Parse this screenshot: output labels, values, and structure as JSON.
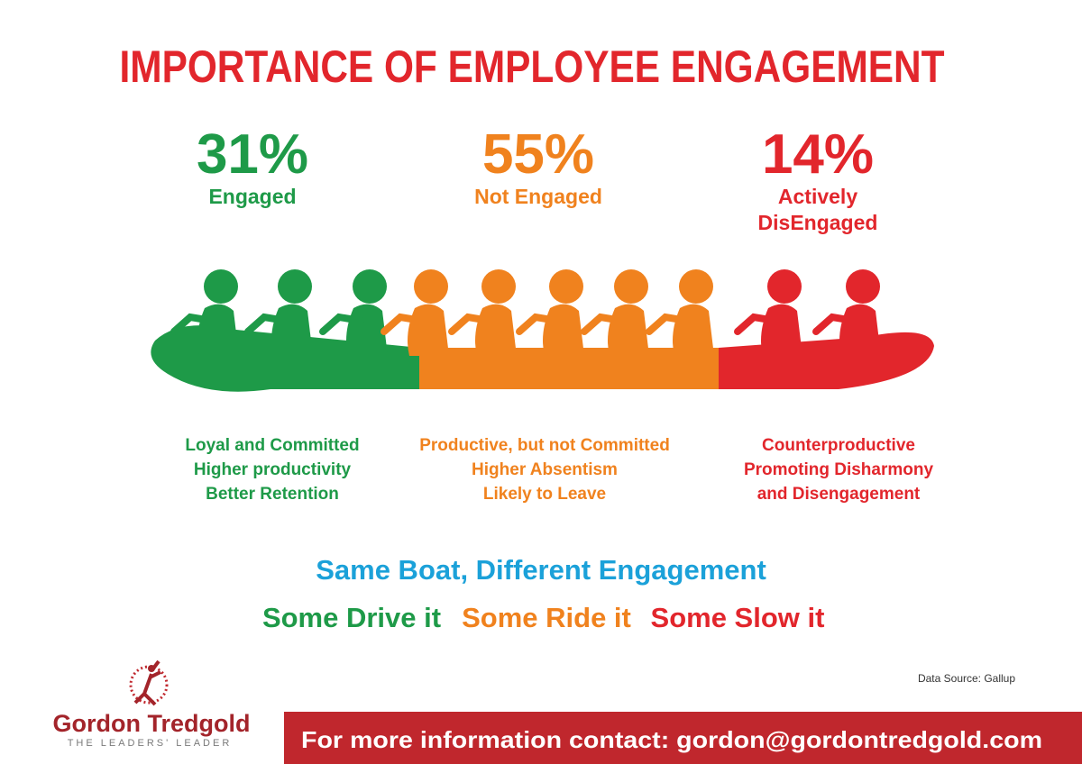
{
  "title": "IMPORTANCE OF EMPLOYEE ENGAGEMENT",
  "columns": [
    {
      "percent": "31%",
      "label": [
        "Engaged"
      ],
      "description": [
        "Loyal and Committed",
        "Higher productivity",
        "Better Retention"
      ]
    },
    {
      "percent": "55%",
      "label": [
        "Not Engaged"
      ],
      "description": [
        "Productive, but not Committed",
        "Higher Absentism",
        "Likely to Leave"
      ]
    },
    {
      "percent": "14%",
      "label": [
        "Actively",
        "DisEngaged"
      ],
      "description": [
        "Counterproductive",
        "Promoting Disharmony",
        "and Disengagement"
      ]
    }
  ],
  "tagline": "Same Boat, Different Engagement",
  "slogans": [
    "Some Drive it",
    "Some Ride it",
    "Some Slow it"
  ],
  "data_source": "Data Source: Gallup",
  "logo": {
    "name": "Gordon Tredgold",
    "tagline": "THE LEADERS' LEADER"
  },
  "footer": {
    "contact": "For more information contact: gordon@gordontredgold.com"
  }
}
